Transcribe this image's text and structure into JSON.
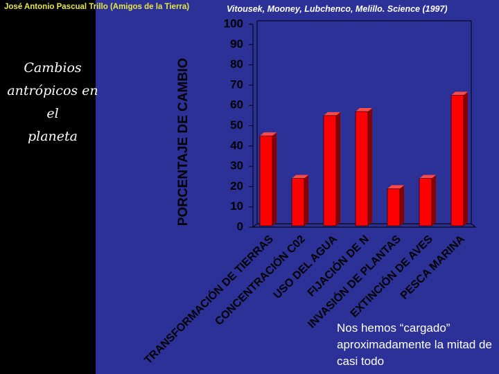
{
  "header": {
    "author": "José Antonio Pascual Trillo (Amigos de la Tierra)",
    "citation": "Vitousek, Mooney, Lubchenco, Melillo. Science (1997)"
  },
  "side_title": [
    "Cambios",
    "antrópicos en el",
    "planeta"
  ],
  "footnote": "Nos hemos “cargado” aproximadamente la mitad de casi todo",
  "colors": {
    "bar_front": "#ff0000",
    "bar_top": "#ff4a4a",
    "bar_side": "#880000",
    "background": "#2b3196",
    "axis_text": "#000000"
  },
  "chart_data": {
    "type": "bar",
    "categories": [
      [
        "TRANSFORMACIÓN DE TIERRAS"
      ],
      [
        "CONCENTRACIÓN C02"
      ],
      [
        "USO DEL AGUA"
      ],
      [
        "FIJACIÓN DE N"
      ],
      [
        "INVASIÓN DE PLANTAS"
      ],
      [
        "EXTINCIÓN DE AVES"
      ],
      [
        "PESCA MARINA"
      ]
    ],
    "values": [
      45,
      24,
      55,
      57,
      19,
      24,
      65
    ],
    "ylabel": "PORCENTAJE DE CAMBIO",
    "ylim": [
      0,
      100
    ],
    "yticks": [
      0,
      10,
      20,
      30,
      40,
      50,
      60,
      70,
      80,
      90,
      100
    ],
    "grid": false,
    "style": "3d"
  }
}
